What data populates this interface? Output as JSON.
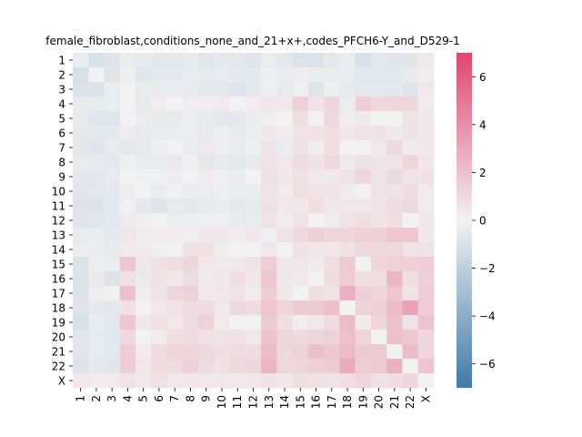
{
  "chart_data": {
    "type": "heatmap",
    "title": "female_fibroblast,conditions_none_and_21+x+,codes_PFCH6-Y_and_D529-1",
    "xlabel": "",
    "ylabel": "",
    "x_labels": [
      "1",
      "2",
      "3",
      "4",
      "5",
      "6",
      "7",
      "8",
      "9",
      "10",
      "11",
      "12",
      "13",
      "14",
      "15",
      "16",
      "17",
      "18",
      "19",
      "20",
      "21",
      "22",
      "X"
    ],
    "y_labels": [
      "1",
      "2",
      "3",
      "4",
      "5",
      "6",
      "7",
      "8",
      "9",
      "10",
      "11",
      "12",
      "13",
      "14",
      "15",
      "16",
      "17",
      "18",
      "19",
      "20",
      "21",
      "22",
      "X"
    ],
    "colorbar": {
      "vmin": -7,
      "vmax": 7,
      "ticks": [
        -6,
        -4,
        -2,
        0,
        2,
        4,
        6
      ],
      "low_color": "#3f7aa8",
      "mid_color": "#f2f2f2",
      "high_color": "#de4672"
    },
    "grid": false,
    "values": [
      [
        -0.3,
        -1.0,
        -0.8,
        -0.3,
        -0.4,
        -0.6,
        -0.6,
        -0.4,
        -0.7,
        -0.5,
        -0.6,
        -0.7,
        -0.3,
        -0.5,
        -0.9,
        -0.9,
        -0.5,
        -0.3,
        -1.0,
        -0.6,
        -0.7,
        -0.7,
        0.4
      ],
      [
        -1.0,
        0.0,
        -0.8,
        -0.2,
        -0.7,
        -0.5,
        -0.5,
        -0.4,
        -0.4,
        -0.4,
        -0.5,
        -0.5,
        -0.2,
        -0.3,
        0.2,
        -0.3,
        -0.3,
        -0.3,
        -0.6,
        -0.6,
        -0.6,
        -0.4,
        0.2
      ],
      [
        -0.9,
        -0.9,
        -0.3,
        0.0,
        -0.4,
        -0.4,
        -0.4,
        -0.4,
        -0.5,
        -0.5,
        -0.8,
        -0.6,
        -0.2,
        -0.4,
        -0.2,
        -0.8,
        -0.2,
        -0.4,
        -0.5,
        -0.5,
        -0.5,
        -0.8,
        0.4
      ],
      [
        -0.4,
        -0.4,
        -0.3,
        0.0,
        -0.4,
        0.2,
        0.0,
        0.2,
        0.2,
        0.3,
        0.0,
        0.2,
        0.4,
        0.4,
        1.4,
        0.6,
        1.2,
        -0.3,
        1.5,
        1.1,
        1.2,
        1.2,
        0.3
      ],
      [
        -0.4,
        -0.7,
        -0.7,
        0.0,
        -0.3,
        -0.4,
        -0.4,
        -0.3,
        -0.4,
        -0.5,
        -0.5,
        -0.3,
        0.2,
        0.0,
        0.8,
        0.0,
        1.0,
        0.2,
        0.4,
        0.0,
        0.0,
        0.6,
        0.4
      ],
      [
        -0.6,
        -0.5,
        -0.5,
        0.3,
        -0.4,
        -0.3,
        -0.3,
        -0.3,
        -0.4,
        -0.2,
        -0.4,
        -0.3,
        0.4,
        0.3,
        0.6,
        0.6,
        0.8,
        0.5,
        0.6,
        0.6,
        0.4,
        0.6,
        0.4
      ],
      [
        -0.6,
        -0.7,
        -0.4,
        -0.5,
        -0.4,
        -0.2,
        0.0,
        -0.3,
        0.4,
        -0.2,
        -0.4,
        -0.2,
        0.6,
        -0.3,
        0.6,
        0.2,
        0.8,
        0.0,
        0.0,
        0.5,
        1.0,
        0.3,
        0.4
      ],
      [
        -0.4,
        -0.4,
        -0.5,
        -0.2,
        -0.3,
        -0.3,
        -0.4,
        -0.2,
        -0.5,
        -0.4,
        -0.6,
        -0.4,
        0.6,
        0.5,
        0.9,
        0.6,
        1.0,
        0.4,
        0.6,
        0.6,
        0.6,
        1.2,
        0.5
      ],
      [
        -0.6,
        -0.6,
        -0.4,
        0.0,
        -0.1,
        -0.1,
        0.3,
        0.0,
        0.3,
        -0.2,
        -0.3,
        0.0,
        0.7,
        0.5,
        0.7,
        0.4,
        0.4,
        0.6,
        1.2,
        0.6,
        1.0,
        0.6,
        0.7
      ],
      [
        -0.7,
        -0.6,
        -0.5,
        0.2,
        0.0,
        -0.3,
        -0.1,
        -0.3,
        -0.3,
        -0.2,
        -0.3,
        -0.3,
        0.6,
        0.3,
        0.7,
        0.6,
        0.6,
        0.3,
        0.0,
        0.6,
        0.6,
        0.9,
        0.3
      ],
      [
        -0.8,
        -0.8,
        -0.6,
        0.1,
        -0.5,
        -0.8,
        -0.4,
        -0.6,
        -0.4,
        -0.3,
        -0.5,
        -0.4,
        0.7,
        0.4,
        0.4,
        0.8,
        0.5,
        0.5,
        0.5,
        0.6,
        0.9,
        1.0,
        0.3
      ],
      [
        -0.8,
        -0.7,
        -0.6,
        0.3,
        -0.2,
        0.0,
        -0.3,
        -0.2,
        -0.2,
        -0.2,
        -0.4,
        -0.3,
        0.6,
        0.2,
        0.6,
        0.0,
        0.2,
        0.6,
        0.8,
        0.6,
        0.8,
        0.0,
        0.4
      ],
      [
        -0.4,
        -0.3,
        -0.5,
        0.5,
        0.3,
        0.3,
        0.3,
        0.2,
        0.4,
        0.4,
        0.2,
        0.4,
        -0.2,
        0.6,
        1.0,
        1.4,
        1.2,
        1.2,
        1.4,
        1.4,
        1.8,
        1.8,
        0.4
      ],
      [
        -0.3,
        -0.3,
        -0.4,
        0.3,
        0.3,
        -0.2,
        0.1,
        0.7,
        0.7,
        0.2,
        0.0,
        0.0,
        0.5,
        0.0,
        0.6,
        0.5,
        0.5,
        0.7,
        1.0,
        1.1,
        1.1,
        0.6,
        0.6
      ],
      [
        -0.9,
        0.2,
        -0.3,
        1.7,
        0.4,
        0.7,
        0.8,
        1.2,
        0.4,
        0.3,
        0.4,
        0.6,
        1.5,
        0.4,
        0.5,
        0.3,
        0.8,
        1.6,
        0.0,
        1.2,
        1.4,
        1.4,
        1.5
      ],
      [
        -0.9,
        -0.4,
        -0.9,
        0.7,
        -0.4,
        0.6,
        0.5,
        0.9,
        0.3,
        0.4,
        0.8,
        0.5,
        1.7,
        0.5,
        0.4,
        0.0,
        0.8,
        1.5,
        0.8,
        0.8,
        2.4,
        0.8,
        1.4
      ],
      [
        -0.9,
        0.2,
        -0.1,
        2.0,
        0.2,
        0.6,
        1.2,
        1.3,
        0.4,
        0.5,
        0.6,
        0.3,
        1.5,
        0.4,
        0.0,
        0.8,
        0.6,
        2.7,
        1.4,
        1.2,
        1.8,
        0.6,
        1.5
      ],
      [
        -0.8,
        -0.5,
        -0.6,
        0.7,
        0.0,
        0.5,
        0.6,
        0.9,
        0.9,
        0.4,
        1.0,
        0.9,
        1.8,
        1.2,
        1.6,
        1.6,
        2.0,
        0.0,
        1.3,
        1.4,
        2.2,
        3.2,
        1.5
      ],
      [
        -1.0,
        -0.3,
        -0.6,
        1.8,
        0.4,
        0.7,
        0.5,
        0.9,
        1.3,
        0.3,
        0.0,
        0.0,
        1.6,
        0.8,
        0.2,
        0.5,
        0.9,
        2.2,
        0.3,
        1.2,
        2.0,
        0.6,
        1.9
      ],
      [
        -0.7,
        -0.4,
        -0.6,
        1.0,
        0.0,
        0.2,
        0.8,
        0.9,
        0.6,
        0.6,
        0.6,
        0.4,
        1.9,
        1.2,
        1.0,
        1.2,
        1.3,
        2.0,
        1.2,
        0.0,
        2.0,
        1.8,
        1.2
      ],
      [
        -0.7,
        -0.4,
        -0.5,
        1.5,
        0.3,
        0.9,
        1.2,
        1.2,
        1.0,
        0.8,
        0.9,
        0.9,
        2.2,
        1.1,
        1.3,
        2.0,
        1.7,
        2.2,
        1.6,
        1.6,
        0.0,
        2.2,
        1.2
      ],
      [
        -0.8,
        -0.5,
        -0.7,
        1.5,
        0.5,
        0.8,
        0.9,
        1.4,
        0.9,
        0.7,
        1.0,
        1.2,
        2.4,
        1.1,
        1.2,
        1.4,
        1.6,
        2.9,
        1.5,
        1.6,
        2.6,
        0.0,
        1.8
      ],
      [
        0.5,
        0.2,
        0.3,
        0.6,
        0.4,
        0.7,
        0.4,
        0.5,
        0.5,
        0.4,
        0.4,
        0.5,
        0.6,
        0.5,
        0.8,
        0.7,
        0.6,
        0.8,
        1.2,
        0.7,
        0.8,
        1.2,
        0.0
      ]
    ]
  }
}
